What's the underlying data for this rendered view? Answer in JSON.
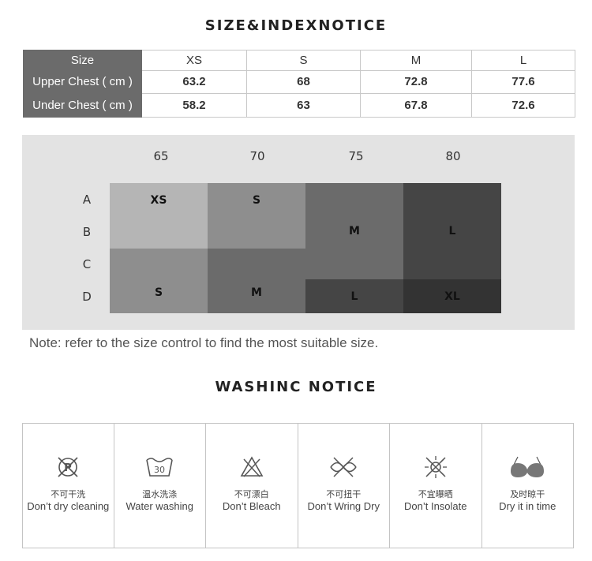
{
  "size_notice": {
    "title": "SIZE&INDEXNOTICE",
    "table": {
      "header_label": "Size",
      "sizes": [
        "XS",
        "S",
        "M",
        "L"
      ],
      "rows": [
        {
          "label": "Upper Chest ( cm )",
          "values": [
            "63.2",
            "68",
            "72.8",
            "77.6"
          ]
        },
        {
          "label": "Under Chest ( cm )",
          "values": [
            "58.2",
            "63",
            "67.8",
            "72.6"
          ]
        }
      ]
    },
    "chart": {
      "band_sizes": [
        "65",
        "70",
        "75",
        "80"
      ],
      "cup_sizes": [
        "A",
        "B",
        "C",
        "D"
      ],
      "blocks": [
        {
          "label": "XS",
          "color": "#b5b5b5"
        },
        {
          "label": "S",
          "color": "#8e8e8e"
        },
        {
          "label": "M",
          "color": "#6b6b6b"
        },
        {
          "label": "L",
          "color": "#454545"
        },
        {
          "label": "S",
          "color": "#8e8e8e"
        },
        {
          "label": "M",
          "color": "#6b6b6b"
        },
        {
          "label": "L",
          "color": "#454545"
        },
        {
          "label": "XL",
          "color": "#333333"
        }
      ],
      "panel_color": "#e3e3e3"
    },
    "note": "Note: refer to the size control to find the most suitable size."
  },
  "washing_notice": {
    "title": "WASHINC NOTICE",
    "items": [
      {
        "icon": "no-dry-clean-icon",
        "cn": "不可干洗",
        "en": "Don’t dry cleaning"
      },
      {
        "icon": "wash-30-icon",
        "cn": "温水洗涤",
        "en": "Water washing",
        "temp": "30"
      },
      {
        "icon": "no-bleach-icon",
        "cn": "不可漂白",
        "en": "Don’t Bleach"
      },
      {
        "icon": "no-wring-icon",
        "cn": "不可扭干",
        "en": "Don’t Wring Dry"
      },
      {
        "icon": "no-sun-icon",
        "cn": "不宜曝晒",
        "en": "Don’t Insolate"
      },
      {
        "icon": "bra-dry-icon",
        "cn": "及时晾干",
        "en": "Dry it in time"
      }
    ]
  },
  "colors": {
    "header_bg": "#6b6b6b",
    "text": "#333333",
    "border": "#c8c8c8"
  }
}
